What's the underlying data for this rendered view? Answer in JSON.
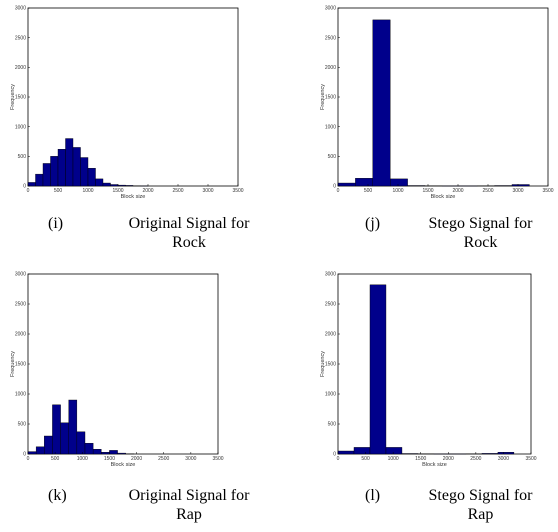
{
  "charts": [
    {
      "id": "i",
      "caption_label": "(i)",
      "caption_line1": "Original Signal for",
      "caption_line2": "Rock",
      "chart_data": {
        "type": "bar",
        "xlabel": "Block size",
        "ylabel": "Frequency",
        "xlim": [
          0,
          3500
        ],
        "ylim": [
          0,
          3000
        ],
        "xticks": [
          "0",
          "500",
          "1000",
          "1500",
          "2000",
          "2500",
          "3000",
          "3500"
        ],
        "yticks": [
          "0",
          "500",
          "1000",
          "1500",
          "2000",
          "2500",
          "3000"
        ],
        "bin_width": 125,
        "bin_starts": [
          0,
          125,
          250,
          375,
          500,
          625,
          750,
          875,
          1000,
          1125,
          1250,
          1375,
          1500,
          1625,
          1750,
          1875
        ],
        "values": [
          60,
          200,
          380,
          500,
          620,
          800,
          650,
          480,
          300,
          120,
          50,
          25,
          15,
          10,
          5,
          3
        ],
        "bar_color": "#00008B",
        "grid": false
      }
    },
    {
      "id": "j",
      "caption_label": "(j)",
      "caption_line1": "Stego Signal for",
      "caption_line2": "Rock",
      "chart_data": {
        "type": "bar",
        "xlabel": "Block size",
        "ylabel": "Frequency",
        "xlim": [
          0,
          3500
        ],
        "ylim": [
          0,
          3000
        ],
        "xticks": [
          "0",
          "500",
          "1000",
          "1500",
          "2000",
          "2500",
          "3000",
          "3500"
        ],
        "yticks": [
          "0",
          "500",
          "1000",
          "1500",
          "2000",
          "2500",
          "3000"
        ],
        "bin_width": 290,
        "bin_starts": [
          0,
          290,
          580,
          870,
          1160,
          1450,
          1740,
          2030,
          2320,
          2610,
          2900
        ],
        "values": [
          50,
          130,
          2800,
          120,
          8,
          5,
          3,
          3,
          5,
          8,
          25
        ],
        "bar_color": "#00008B",
        "grid": false
      }
    },
    {
      "id": "k",
      "caption_label": "(k)",
      "caption_line1": "Original Signal for",
      "caption_line2": "Rap",
      "chart_data": {
        "type": "bar",
        "xlabel": "Block size",
        "ylabel": "Frequency",
        "xlim": [
          0,
          3500
        ],
        "ylim": [
          0,
          3000
        ],
        "xticks": [
          "0",
          "500",
          "1000",
          "1500",
          "2000",
          "2500",
          "3000",
          "3500"
        ],
        "yticks": [
          "0",
          "500",
          "1000",
          "1500",
          "2000",
          "2500",
          "3000"
        ],
        "bin_width": 150,
        "bin_starts": [
          0,
          150,
          300,
          450,
          600,
          750,
          900,
          1050,
          1200,
          1350,
          1500,
          1650,
          1800
        ],
        "values": [
          40,
          120,
          300,
          820,
          520,
          900,
          370,
          180,
          80,
          30,
          60,
          15,
          5
        ],
        "bar_color": "#00008B",
        "grid": false
      }
    },
    {
      "id": "l",
      "caption_label": "(l)",
      "caption_line1": "Stego Signal for",
      "caption_line2": "Rap",
      "chart_data": {
        "type": "bar",
        "xlabel": "Block size",
        "ylabel": "Frequency",
        "xlim": [
          0,
          3500
        ],
        "ylim": [
          0,
          3000
        ],
        "xticks": [
          "0",
          "500",
          "1000",
          "1500",
          "2000",
          "2500",
          "3000",
          "3500"
        ],
        "yticks": [
          "0",
          "500",
          "1000",
          "1500",
          "2000",
          "2500",
          "3000"
        ],
        "bin_width": 290,
        "bin_starts": [
          0,
          290,
          580,
          870,
          1160,
          1450,
          1740,
          2030,
          2320,
          2610,
          2900
        ],
        "values": [
          50,
          110,
          2820,
          110,
          8,
          5,
          3,
          3,
          5,
          10,
          30
        ],
        "bar_color": "#00008B",
        "grid": false
      }
    }
  ]
}
